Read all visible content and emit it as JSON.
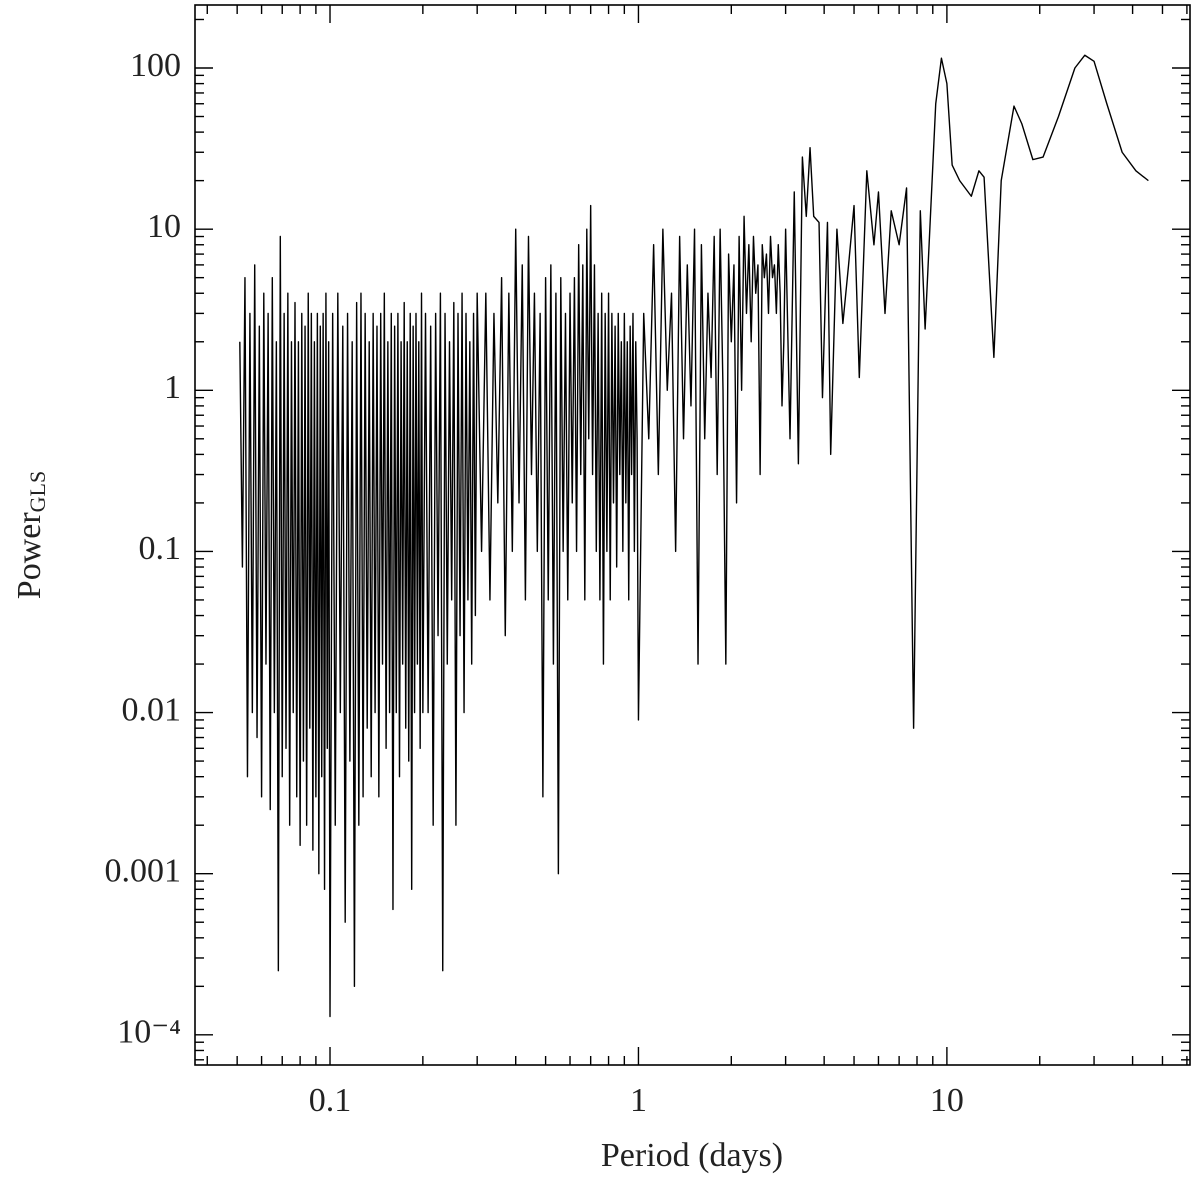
{
  "chart_data": {
    "type": "line",
    "xlabel": "Period (days)",
    "ylabel": "Power",
    "ylabel_sub": "GLS",
    "xscale": "log",
    "yscale": "log",
    "color": "#000000",
    "xlim": [
      0.0365,
      61.4
    ],
    "ylim": [
      6.5e-05,
      246
    ],
    "xticks": [
      0.1,
      1,
      10
    ],
    "yticks": [
      {
        "value": 0.0001,
        "label": "10⁻⁴"
      },
      0.001,
      0.01,
      0.1,
      1,
      10,
      100
    ],
    "xticks_minor": [
      0.04,
      0.05,
      0.06,
      0.07,
      0.08,
      0.09,
      0.2,
      0.3,
      0.4,
      0.5,
      0.6,
      0.7,
      0.8,
      0.9,
      2,
      3,
      4,
      5,
      6,
      7,
      8,
      9,
      20,
      30,
      40,
      50,
      60
    ],
    "yticks_minor": [
      7e-05,
      8e-05,
      9e-05,
      0.0002,
      0.0003,
      0.0004,
      0.0005,
      0.0006,
      0.0007,
      0.0008,
      0.0009,
      0.002,
      0.003,
      0.004,
      0.005,
      0.006,
      0.007,
      0.008,
      0.009,
      0.02,
      0.03,
      0.04,
      0.05,
      0.06,
      0.07,
      0.08,
      0.09,
      0.2,
      0.3,
      0.4,
      0.5,
      0.6,
      0.7,
      0.8,
      0.9,
      2,
      3,
      4,
      5,
      6,
      7,
      8,
      9,
      20,
      30,
      40,
      50,
      60,
      70,
      80,
      90,
      200
    ],
    "x": [
      0.051,
      0.052,
      0.053,
      0.054,
      0.055,
      0.056,
      0.057,
      0.058,
      0.059,
      0.06,
      0.061,
      0.062,
      0.063,
      0.064,
      0.065,
      0.066,
      0.067,
      0.068,
      0.069,
      0.07,
      0.071,
      0.072,
      0.073,
      0.074,
      0.075,
      0.076,
      0.077,
      0.078,
      0.079,
      0.08,
      0.081,
      0.082,
      0.083,
      0.084,
      0.085,
      0.086,
      0.087,
      0.088,
      0.089,
      0.09,
      0.091,
      0.092,
      0.093,
      0.094,
      0.095,
      0.096,
      0.097,
      0.098,
      0.099,
      0.1,
      0.102,
      0.104,
      0.106,
      0.108,
      0.11,
      0.112,
      0.114,
      0.116,
      0.118,
      0.12,
      0.122,
      0.124,
      0.126,
      0.128,
      0.13,
      0.132,
      0.134,
      0.136,
      0.138,
      0.14,
      0.142,
      0.144,
      0.146,
      0.148,
      0.15,
      0.152,
      0.154,
      0.156,
      0.158,
      0.16,
      0.162,
      0.164,
      0.166,
      0.168,
      0.17,
      0.172,
      0.174,
      0.176,
      0.178,
      0.18,
      0.182,
      0.184,
      0.186,
      0.188,
      0.19,
      0.192,
      0.194,
      0.196,
      0.198,
      0.2,
      0.204,
      0.208,
      0.212,
      0.216,
      0.22,
      0.224,
      0.228,
      0.232,
      0.236,
      0.24,
      0.244,
      0.248,
      0.252,
      0.256,
      0.26,
      0.264,
      0.268,
      0.272,
      0.276,
      0.28,
      0.284,
      0.288,
      0.292,
      0.296,
      0.3,
      0.31,
      0.32,
      0.33,
      0.34,
      0.35,
      0.36,
      0.37,
      0.38,
      0.39,
      0.4,
      0.41,
      0.42,
      0.43,
      0.44,
      0.45,
      0.46,
      0.47,
      0.48,
      0.49,
      0.5,
      0.51,
      0.52,
      0.53,
      0.54,
      0.55,
      0.56,
      0.57,
      0.58,
      0.59,
      0.6,
      0.61,
      0.62,
      0.63,
      0.64,
      0.65,
      0.66,
      0.67,
      0.68,
      0.69,
      0.7,
      0.71,
      0.72,
      0.73,
      0.74,
      0.75,
      0.76,
      0.77,
      0.78,
      0.79,
      0.8,
      0.81,
      0.82,
      0.83,
      0.84,
      0.85,
      0.86,
      0.87,
      0.88,
      0.89,
      0.9,
      0.91,
      0.92,
      0.93,
      0.94,
      0.95,
      0.96,
      0.97,
      0.98,
      0.99,
      1.0,
      1.04,
      1.08,
      1.12,
      1.16,
      1.2,
      1.24,
      1.28,
      1.32,
      1.36,
      1.4,
      1.44,
      1.48,
      1.52,
      1.56,
      1.6,
      1.64,
      1.68,
      1.72,
      1.76,
      1.8,
      1.84,
      1.88,
      1.92,
      1.96,
      2.0,
      2.04,
      2.08,
      2.12,
      2.16,
      2.2,
      2.24,
      2.28,
      2.32,
      2.36,
      2.4,
      2.44,
      2.48,
      2.52,
      2.56,
      2.6,
      2.64,
      2.68,
      2.72,
      2.76,
      2.8,
      2.84,
      2.88,
      2.92,
      2.96,
      3.0,
      3.1,
      3.2,
      3.3,
      3.4,
      3.5,
      3.6,
      3.7,
      3.85,
      3.95,
      4.1,
      4.2,
      4.4,
      4.6,
      4.8,
      5,
      5.2,
      5.5,
      5.8,
      6,
      6.3,
      6.6,
      7,
      7.4,
      7.8,
      8.2,
      8.5,
      9.2,
      9.6,
      10,
      10.4,
      11,
      12,
      12.7,
      13.2,
      14.2,
      15,
      16.5,
      17.5,
      19,
      20.5,
      23,
      26,
      28,
      30,
      33,
      37,
      41,
      45
    ],
    "values": [
      2,
      0.08,
      5,
      0.004,
      3,
      0.01,
      6,
      0.007,
      2.5,
      0.003,
      4,
      0.02,
      3,
      0.0025,
      5,
      0.01,
      2,
      0.00025,
      9,
      0.004,
      3,
      0.006,
      4,
      0.002,
      2,
      0.01,
      3.5,
      0.003,
      2,
      0.0015,
      3,
      0.005,
      2.5,
      0.002,
      4,
      0.008,
      3,
      0.0014,
      2,
      0.003,
      3,
      0.001,
      2.5,
      0.004,
      3,
      0.0008,
      4,
      0.006,
      2,
      0.00013,
      3,
      0.002,
      4,
      0.01,
      2.5,
      0.0005,
      3,
      0.005,
      2,
      0.0002,
      3.5,
      0.002,
      4,
      0.003,
      3,
      0.008,
      2,
      0.004,
      3,
      0.01,
      2.5,
      0.003,
      3,
      0.02,
      4,
      0.006,
      2,
      0.01,
      3,
      0.0006,
      2.5,
      0.01,
      3,
      0.004,
      2,
      0.02,
      3.5,
      0.008,
      2,
      0.005,
      3,
      0.0008,
      2.5,
      0.01,
      3,
      0.02,
      2,
      0.006,
      4,
      0.01,
      3,
      0.01,
      2.5,
      0.002,
      3,
      0.03,
      4,
      0.00025,
      3,
      0.02,
      2,
      0.05,
      3.5,
      0.002,
      3,
      0.03,
      4,
      0.01,
      3,
      0.05,
      2,
      0.02,
      3,
      0.04,
      4,
      0.1,
      4,
      0.05,
      3,
      0.2,
      5,
      0.03,
      4,
      0.1,
      10,
      0.2,
      6,
      0.05,
      9,
      0.3,
      4,
      0.1,
      3,
      0.003,
      5,
      0.05,
      6,
      0.02,
      4,
      0.001,
      5,
      0.1,
      3,
      0.05,
      4,
      0.2,
      5,
      0.1,
      8,
      0.3,
      6,
      0.05,
      10,
      0.5,
      14,
      0.3,
      6,
      0.1,
      3,
      0.05,
      4,
      0.02,
      3,
      0.1,
      4,
      0.05,
      3,
      0.2,
      2.5,
      0.08,
      3,
      0.3,
      2,
      0.1,
      3,
      0.2,
      2,
      0.05,
      2.5,
      0.3,
      3,
      0.1,
      2,
      0.5,
      0.009,
      3,
      0.5,
      8,
      0.3,
      10,
      1,
      4,
      0.1,
      9,
      0.5,
      6,
      0.8,
      10,
      0.02,
      8,
      0.5,
      4,
      1.2,
      9,
      0.3,
      10,
      1,
      0.02,
      7,
      2,
      6,
      0.2,
      9,
      1,
      12,
      3,
      8,
      2,
      9,
      4,
      6,
      0.3,
      8,
      5,
      7,
      3,
      9,
      5,
      6,
      3,
      8,
      4,
      0.8,
      2,
      10,
      0.5,
      17,
      0.35,
      28,
      12,
      32,
      12,
      11,
      0.9,
      11,
      0.4,
      10,
      2.6,
      6,
      14,
      1.2,
      23,
      8,
      17,
      3,
      13,
      8,
      18,
      0.008,
      13,
      2.4,
      60,
      115,
      80,
      25,
      20,
      16,
      23,
      21,
      1.6,
      20,
      58,
      45,
      27,
      28,
      50,
      100,
      120,
      110,
      60,
      30,
      23,
      20
    ]
  }
}
